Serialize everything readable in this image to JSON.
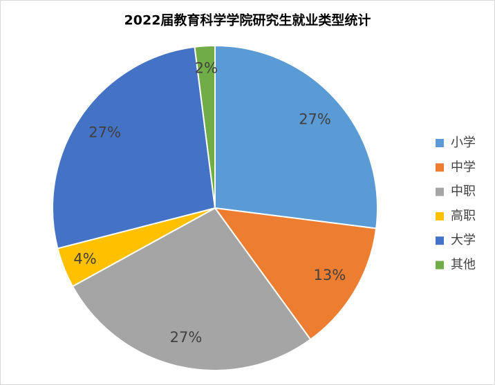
{
  "chart_data": {
    "type": "pie",
    "title": "2022届教育科学学院研究生就业类型统计",
    "categories": [
      "小学",
      "中学",
      "中职",
      "高职",
      "大学",
      "其他"
    ],
    "values": [
      27,
      13,
      27,
      4,
      27,
      2
    ],
    "value_labels": [
      "27%",
      "13%",
      "27%",
      "4%",
      "27%",
      "2%"
    ],
    "colors": [
      "#5B9BD5",
      "#ED7D31",
      "#A5A5A5",
      "#FFC000",
      "#4472C4",
      "#70AD47"
    ],
    "legend": "right"
  }
}
